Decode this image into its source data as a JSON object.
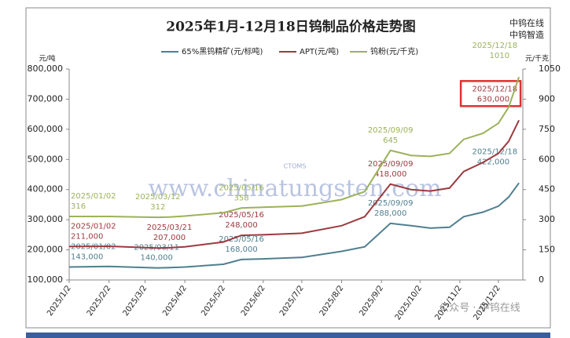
{
  "chart_data": {
    "type": "line",
    "title": "2025年1月-12月18日钨制品价格走势图",
    "brand": [
      "中钨在线",
      "中钨智造"
    ],
    "watermark": "www.chinatungsten.com",
    "logo": "CTOMS",
    "footer_watermark": "公众号 · 中钨在线",
    "y_unit": "元/吨",
    "y2_unit": "元/千克",
    "x": [
      "2025/01/02",
      "2025/02/02",
      "2025/03/11",
      "2025/03/12",
      "2025/03/21",
      "2025/04/02",
      "2025/05/02",
      "2025/05/16",
      "2025/06/02",
      "2025/07/02",
      "2025/08/02",
      "2025/08/20",
      "2025/09/09",
      "2025/09/25",
      "2025/10/10",
      "2025/10/25",
      "2025/11/05",
      "2025/11/20",
      "2025/12/02",
      "2025/12/10",
      "2025/12/18"
    ],
    "xlim": [
      "2025/1/2",
      "2025/12/21"
    ],
    "xticks": [
      "2025/1/2",
      "2025/2/2",
      "2025/3/2",
      "2025/4/2",
      "2025/5/2",
      "2025/6/2",
      "2025/7/2",
      "2025/8/2",
      "2025/9/2",
      "2025/10/2",
      "2025/11/2",
      "2025/12/2"
    ],
    "ylim": [
      100000,
      800000
    ],
    "yticks": [
      {
        "value": 100000,
        "label": "100,000"
      },
      {
        "value": 200000,
        "label": "200,000"
      },
      {
        "value": 300000,
        "label": "300,000"
      },
      {
        "value": 400000,
        "label": "400,000"
      },
      {
        "value": 500000,
        "label": "500,000"
      },
      {
        "value": 600000,
        "label": "600,000"
      },
      {
        "value": 700000,
        "label": "700,000"
      },
      {
        "value": 800000,
        "label": "800,000"
      }
    ],
    "y2lim": [
      0,
      1050
    ],
    "y2ticks": [
      0,
      150,
      300,
      450,
      600,
      750,
      900,
      1050
    ],
    "series": [
      {
        "name": "65%黑钨精矿(元/标吨)",
        "color": "#4f7f8f",
        "values": [
          143000,
          145000,
          140000,
          140000,
          141000,
          143000,
          152000,
          168000,
          170000,
          175000,
          195000,
          210000,
          288000,
          280000,
          272000,
          275000,
          310000,
          325000,
          345000,
          375000,
          422000
        ],
        "annotations": [
          {
            "date": "2025/01/02",
            "value": "143,000"
          },
          {
            "date": "2025/03/11",
            "value": "140,000"
          },
          {
            "date": "2025/05/16",
            "value": "168,000"
          },
          {
            "date": "2025/09/09",
            "value": "288,000"
          },
          {
            "date": "2025/12/18",
            "value": "422,000"
          }
        ]
      },
      {
        "name": "APT(元/吨)",
        "color": "#9c3a3f",
        "values": [
          211000,
          212000,
          206000,
          206000,
          207000,
          210000,
          226000,
          248000,
          250000,
          255000,
          280000,
          310000,
          418000,
          400000,
          395000,
          405000,
          460000,
          490000,
          520000,
          560000,
          630000
        ],
        "annotations": [
          {
            "date": "2025/01/02",
            "value": "211,000"
          },
          {
            "date": "2025/03/21",
            "value": "207,000"
          },
          {
            "date": "2025/05/16",
            "value": "248,000"
          },
          {
            "date": "2025/09/09",
            "value": "418,000"
          },
          {
            "date": "2025/12/18",
            "value": "630,000",
            "highlight": true
          }
        ]
      },
      {
        "name": "钨粉(元/千克)",
        "color": "#9bb25a",
        "axis": "y2",
        "values": [
          316,
          316,
          312,
          312,
          313,
          318,
          335,
          358,
          362,
          368,
          400,
          440,
          645,
          620,
          615,
          630,
          700,
          730,
          780,
          860,
          1010
        ],
        "annotations": [
          {
            "date": "2025/01/02",
            "value": "316"
          },
          {
            "date": "2025/03/12",
            "value": "312"
          },
          {
            "date": "2025/05/16",
            "value": "358"
          },
          {
            "date": "2025/09/09",
            "value": "645"
          },
          {
            "date": "2025/12/18",
            "value": "1010"
          }
        ]
      }
    ]
  }
}
